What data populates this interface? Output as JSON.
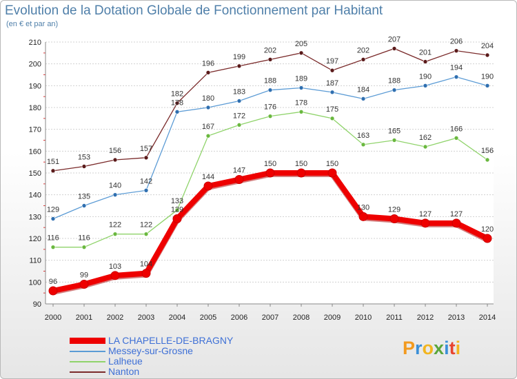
{
  "title": "Evolution de la Dotation Globale de Fonctionnement par Habitant",
  "subtitle": "(en € et par an)",
  "logo": {
    "text": "Proxiti",
    "letters": [
      "P",
      "r",
      "o",
      "x",
      "i",
      "t",
      "i"
    ],
    "colors": [
      "#f29a1f",
      "#3a8fd8",
      "#f2b51f",
      "#5aa63c",
      "#3a8fd8",
      "#e8442e",
      "#f2b51f"
    ]
  },
  "chart_data": {
    "type": "line",
    "title": "Evolution de la Dotation Globale de Fonctionnement par Habitant",
    "ylabel": "(en € et par an)",
    "xlabel": "",
    "x": [
      "2000",
      "2001",
      "2002",
      "2003",
      "2004",
      "2005",
      "2006",
      "2007",
      "2008",
      "2009",
      "2010",
      "2011",
      "2012",
      "2013",
      "2014"
    ],
    "ylim": [
      90,
      210
    ],
    "yticks": [
      "90",
      "100",
      "110",
      "120",
      "130",
      "140",
      "150",
      "160",
      "170",
      "180",
      "190",
      "200",
      "210"
    ],
    "grid": "horizontal",
    "legend": "bottom-left",
    "series": [
      {
        "name": "Nanton",
        "color": "#7a2a2a",
        "marker": "#5a1a1a",
        "bold": false,
        "values": [
          151,
          153,
          156,
          157,
          182,
          196,
          199,
          202,
          205,
          197,
          202,
          207,
          201,
          206,
          204
        ]
      },
      {
        "name": "Messey-sur-Grosne",
        "color": "#5b9bd5",
        "marker": "#2f6fb0",
        "bold": false,
        "values": [
          129,
          135,
          140,
          142,
          178,
          180,
          183,
          188,
          189,
          187,
          184,
          188,
          190,
          194,
          190
        ]
      },
      {
        "name": "Lalheue",
        "color": "#8fd36a",
        "marker": "#6ab83f",
        "bold": false,
        "values": [
          116,
          116,
          122,
          122,
          133,
          167,
          172,
          176,
          178,
          175,
          163,
          165,
          162,
          166,
          156
        ]
      },
      {
        "name": "LA CHAPELLE-DE-BRAGNY",
        "color": "#ee0000",
        "marker": "#ee0000",
        "bold": true,
        "values": [
          96,
          99,
          103,
          104,
          129,
          144,
          147,
          150,
          150,
          150,
          130,
          129,
          127,
          127,
          120
        ]
      }
    ],
    "legend_order": [
      "LA CHAPELLE-DE-BRAGNY",
      "Messey-sur-Grosne",
      "Lalheue",
      "Nanton"
    ]
  }
}
